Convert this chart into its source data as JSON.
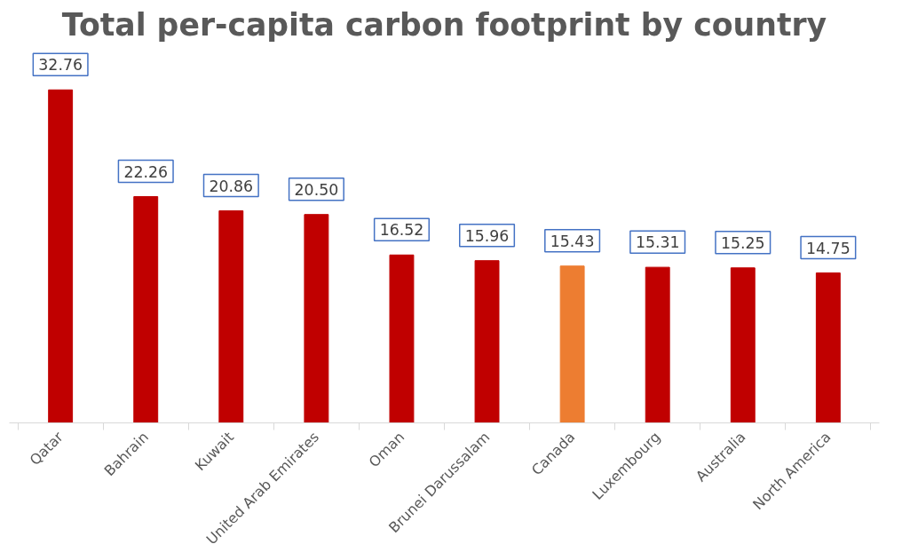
{
  "chart_data": {
    "type": "bar",
    "title": "Total per-capita carbon footprint by country",
    "categories": [
      "Qatar",
      "Bahrain",
      "Kuwait",
      "United Arab Emirates",
      "Oman",
      "Brunei Darussalam",
      "Canada",
      "Luxembourg",
      "Australia",
      "North America"
    ],
    "values": [
      32.76,
      22.26,
      20.86,
      20.5,
      16.52,
      15.96,
      15.43,
      15.31,
      15.25,
      14.75
    ],
    "value_labels": [
      "32.76",
      "22.26",
      "20.86",
      "20.50",
      "16.52",
      "15.96",
      "15.43",
      "15.31",
      "15.25",
      "14.75"
    ],
    "colors": [
      "#c00000",
      "#c00000",
      "#c00000",
      "#c00000",
      "#c00000",
      "#c00000",
      "#ed7d31",
      "#c00000",
      "#c00000",
      "#c00000"
    ],
    "grid": false
  }
}
